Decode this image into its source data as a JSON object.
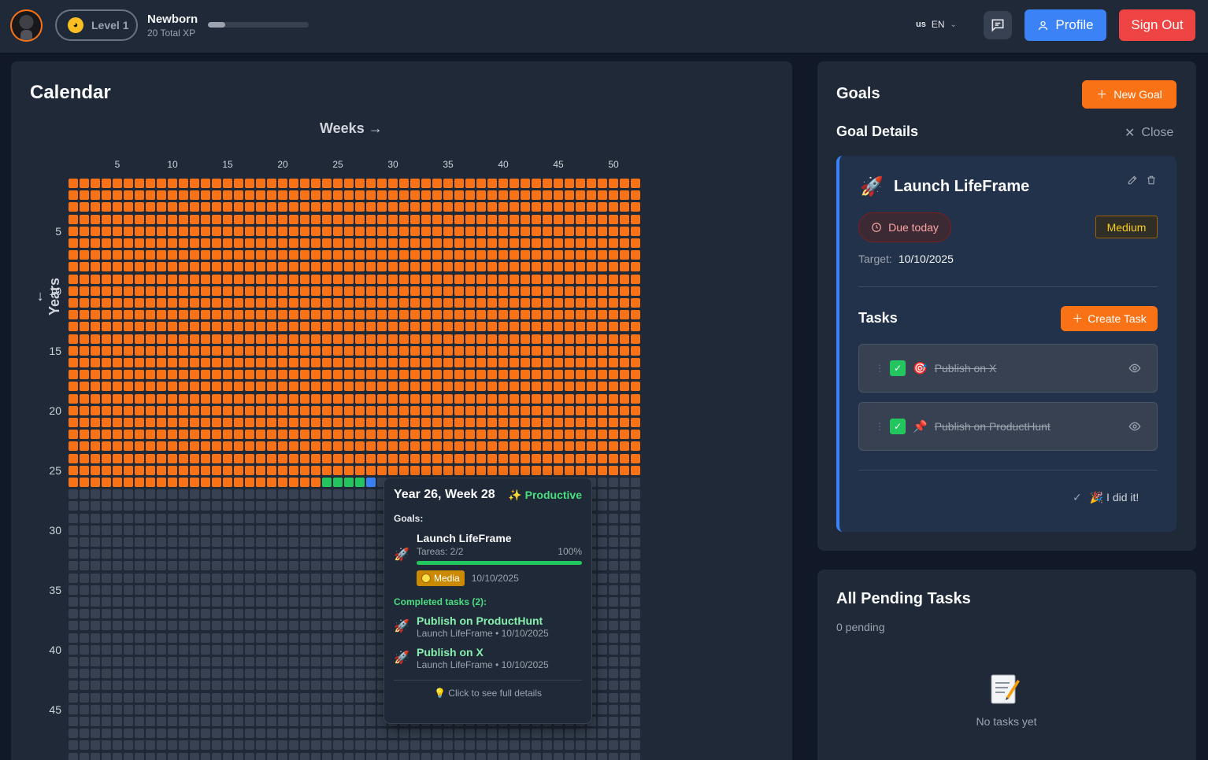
{
  "header": {
    "level": "Level 1",
    "rank_name": "Newborn",
    "total_xp": "20 Total XP",
    "xp_progress": 0.17,
    "lang_flag": "us",
    "lang_code": "EN",
    "profile_label": "Profile",
    "signout_label": "Sign Out",
    "accent_profile": "#3b82f6",
    "accent_signout": "#ef4444"
  },
  "calendar": {
    "title": "Calendar",
    "weeks_label": "Weeks →",
    "years_label": "← Years",
    "week_ticks": [
      "5",
      "10",
      "15",
      "20",
      "25",
      "30",
      "35",
      "40",
      "45",
      "50"
    ],
    "year_ticks": [
      "5",
      "10",
      "15",
      "20",
      "25",
      "30",
      "35",
      "40",
      "45"
    ],
    "weeks_per_year": 52,
    "lived_years": 25,
    "current_year": 26,
    "current_week": 28,
    "productive_weeks_current_year": [
      24,
      25,
      26,
      27
    ],
    "colors": {
      "lived": "#f97316",
      "future": "#374151",
      "productive": "#22c55e",
      "current": "#3b82f6"
    }
  },
  "tooltip": {
    "title": "Year 26, Week 28",
    "status": "✨ Productive",
    "goals_label": "Goals:",
    "goal": {
      "icon": "rocket-icon",
      "name": "Launch LifeFrame",
      "tasks": "Tareas: 2/2",
      "percent": "100%",
      "progress": 1.0,
      "priority": "Media",
      "date": "10/10/2025"
    },
    "completed_label": "Completed tasks (2):",
    "completed_tasks": [
      {
        "name": "Publish on ProductHunt",
        "meta": "Launch LifeFrame • 10/10/2025"
      },
      {
        "name": "Publish on X",
        "meta": "Launch LifeFrame • 10/10/2025"
      }
    ],
    "footer": "💡 Click to see full details"
  },
  "goals": {
    "title": "Goals",
    "new_goal_label": "New Goal",
    "details_title": "Goal Details",
    "close_label": "Close",
    "goal": {
      "icon": "rocket-icon",
      "name": "Launch LifeFrame",
      "due": "Due today",
      "priority": "Medium",
      "target_label": "Target:",
      "target_date": "10/10/2025"
    },
    "tasks_title": "Tasks",
    "create_task_label": "Create Task",
    "tasks": [
      {
        "emoji": "🎯",
        "name": "Publish on X",
        "done": true
      },
      {
        "emoji": "📌",
        "name": "Publish on ProductHunt",
        "done": true
      }
    ],
    "did_it_label": "🎉 I did it!"
  },
  "pending": {
    "title": "All Pending Tasks",
    "count": "0 pending",
    "empty_label": "No tasks yet"
  }
}
